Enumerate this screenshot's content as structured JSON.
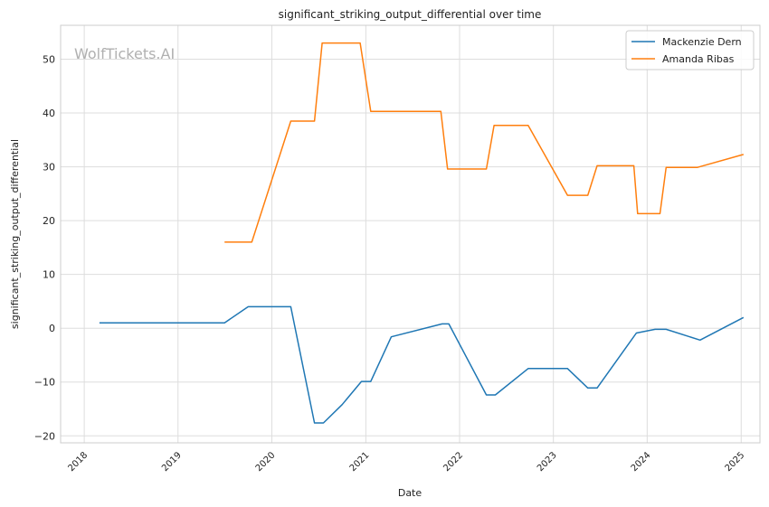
{
  "chart_data": {
    "type": "line",
    "title": "significant_striking_output_differential over time",
    "xlabel": "Date",
    "ylabel": "significant_striking_output_differential",
    "watermark": "WolfTickets.AI",
    "x_ticks": [
      "2018",
      "2019",
      "2020",
      "2021",
      "2022",
      "2023",
      "2024",
      "2025"
    ],
    "y_ticks": [
      -20,
      -10,
      0,
      10,
      20,
      30,
      40,
      50
    ],
    "xlim": [
      "2017-10-01",
      "2025-03-15"
    ],
    "ylim": [
      -21.3,
      56.3
    ],
    "grid": true,
    "legend_position": "top-right",
    "series": [
      {
        "name": "Mackenzie Dern",
        "color": "#1f77b4",
        "points": [
          [
            "2018-03-01",
            1.0
          ],
          [
            "2019-07-01",
            1.0
          ],
          [
            "2019-10-01",
            4.0
          ],
          [
            "2020-03-15",
            4.0
          ],
          [
            "2020-06-15",
            -17.6
          ],
          [
            "2020-07-20",
            -17.6
          ],
          [
            "2020-10-01",
            -14.2
          ],
          [
            "2020-12-15",
            -9.9
          ],
          [
            "2021-01-20",
            -9.9
          ],
          [
            "2021-04-10",
            -1.6
          ],
          [
            "2021-10-25",
            0.8
          ],
          [
            "2021-11-20",
            0.8
          ],
          [
            "2022-04-15",
            -12.4
          ],
          [
            "2022-05-20",
            -12.4
          ],
          [
            "2022-09-25",
            -7.5
          ],
          [
            "2023-02-25",
            -7.5
          ],
          [
            "2023-05-15",
            -11.1
          ],
          [
            "2023-06-20",
            -11.1
          ],
          [
            "2023-11-20",
            -0.9
          ],
          [
            "2024-02-01",
            -0.2
          ],
          [
            "2024-03-15",
            -0.2
          ],
          [
            "2024-07-25",
            -2.2
          ],
          [
            "2025-01-10",
            2.0
          ]
        ]
      },
      {
        "name": "Amanda Ribas",
        "color": "#ff7f0e",
        "points": [
          [
            "2019-07-01",
            16.0
          ],
          [
            "2019-10-15",
            16.0
          ],
          [
            "2020-03-15",
            38.5
          ],
          [
            "2020-06-15",
            38.5
          ],
          [
            "2020-07-15",
            53.0
          ],
          [
            "2020-12-10",
            53.0
          ],
          [
            "2021-01-20",
            40.3
          ],
          [
            "2021-10-20",
            40.3
          ],
          [
            "2021-11-15",
            29.6
          ],
          [
            "2022-04-15",
            29.6
          ],
          [
            "2022-05-15",
            37.7
          ],
          [
            "2022-09-25",
            37.7
          ],
          [
            "2023-02-25",
            24.7
          ],
          [
            "2023-05-15",
            24.7
          ],
          [
            "2023-06-20",
            30.2
          ],
          [
            "2023-11-10",
            30.2
          ],
          [
            "2023-11-25",
            21.3
          ],
          [
            "2024-02-20",
            21.3
          ],
          [
            "2024-03-15",
            29.9
          ],
          [
            "2024-07-15",
            29.9
          ],
          [
            "2025-01-10",
            32.3
          ]
        ]
      }
    ]
  }
}
